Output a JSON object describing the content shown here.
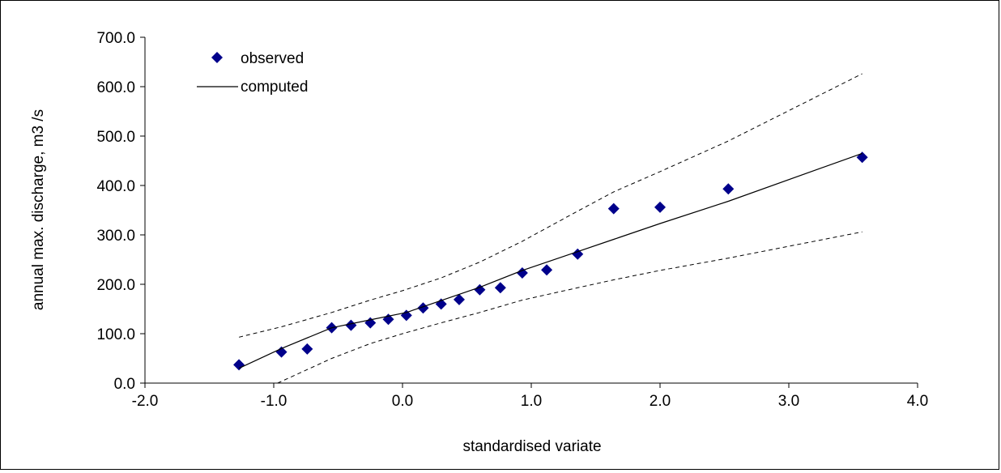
{
  "chart_data": {
    "type": "scatter",
    "title": "",
    "xlabel": "standardised variate",
    "ylabel": "annual max. discharge, m3 /s",
    "xlim": [
      -2.0,
      4.0
    ],
    "ylim": [
      0.0,
      700.0
    ],
    "x_ticks": [
      -2.0,
      -1.0,
      0.0,
      1.0,
      2.0,
      3.0,
      4.0
    ],
    "x_tick_labels": [
      "-2.0",
      "-1.0",
      "0.0",
      "1.0",
      "2.0",
      "3.0",
      "4.0"
    ],
    "y_ticks": [
      0,
      100,
      200,
      300,
      400,
      500,
      600,
      700
    ],
    "y_tick_labels": [
      "0.0",
      "100.0",
      "200.0",
      "300.0",
      "400.0",
      "500.0",
      "600.0",
      "700.0"
    ],
    "grid": false,
    "legend_position": "top-left",
    "legend": [
      {
        "label": "observed",
        "marker": "diamond"
      },
      {
        "label": "computed",
        "marker": "line"
      }
    ],
    "series": [
      {
        "name": "observed",
        "style": "marker",
        "color": "#00008B",
        "x": [
          -1.27,
          -0.94,
          -0.74,
          -0.55,
          -0.4,
          -0.25,
          -0.11,
          0.03,
          0.16,
          0.3,
          0.44,
          0.6,
          0.76,
          0.93,
          1.12,
          1.36,
          1.64,
          2.0,
          2.53,
          3.57
        ],
        "y": [
          37,
          63,
          69,
          112,
          117,
          122,
          129,
          137,
          152,
          160,
          169,
          189,
          193,
          223,
          229,
          261,
          353,
          356,
          393,
          457
        ]
      },
      {
        "name": "computed",
        "style": "solid",
        "color": "#000000",
        "x": [
          -1.27,
          -0.94,
          -0.55,
          -0.25,
          0.03,
          0.3,
          0.6,
          0.93,
          1.36,
          1.64,
          2.0,
          2.53,
          3.57
        ],
        "y": [
          30,
          70,
          112,
          128,
          143,
          167,
          194,
          228,
          266,
          291,
          323,
          368,
          465
        ]
      },
      {
        "name": "",
        "style": "dashed",
        "color": "#000000",
        "x": [
          -1.27,
          -0.94,
          -0.55,
          -0.25,
          0.0,
          0.3,
          0.6,
          0.93,
          1.36,
          1.64,
          2.0,
          2.53,
          3.57
        ],
        "y": [
          93,
          114,
          143,
          168,
          187,
          213,
          245,
          287,
          348,
          387,
          428,
          490,
          626
        ]
      },
      {
        "name": "",
        "style": "dashed",
        "color": "#000000",
        "x": [
          -0.97,
          -0.55,
          -0.25,
          0.0,
          0.3,
          0.6,
          0.93,
          1.36,
          1.64,
          2.0,
          2.53,
          3.57
        ],
        "y": [
          0,
          50,
          80,
          100,
          122,
          143,
          168,
          193,
          209,
          228,
          253,
          306
        ]
      }
    ]
  }
}
